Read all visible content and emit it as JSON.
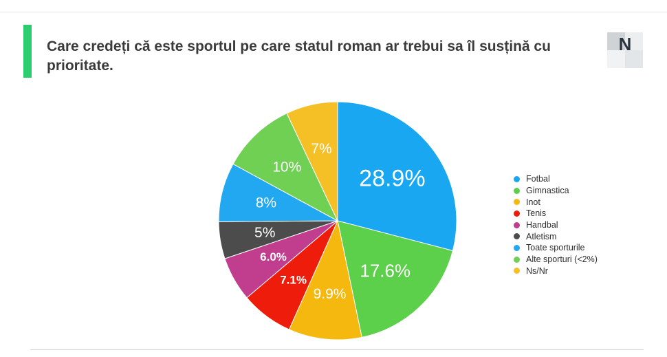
{
  "title": "Care credeți că este sportul pe care statul roman ar trebui sa îl susțină cu prioritate.",
  "accent_color": "#2ecc71",
  "logo": {
    "icon": "n-logo-icon",
    "letter": "N"
  },
  "chart_data": {
    "type": "pie",
    "title": "Care credeți că este sportul pe care statul roman ar trebui sa îl susțină cu prioritate.",
    "legend_position": "right",
    "start_angle_deg": 0,
    "direction": "clockwise",
    "slices": [
      {
        "name": "Fotbal",
        "value": 28.9,
        "label": "28.9%",
        "color": "#1aa7f2"
      },
      {
        "name": "Gimnastica",
        "value": 17.6,
        "label": "17.6%",
        "color": "#5cd04a"
      },
      {
        "name": "Inot",
        "value": 9.9,
        "label": "9.9%",
        "color": "#f5b80f"
      },
      {
        "name": "Tenis",
        "value": 7.1,
        "label": "7.1%",
        "color": "#ee1c0a"
      },
      {
        "name": "Handbal",
        "value": 6.0,
        "label": "6.0%",
        "color": "#c13d8d"
      },
      {
        "name": "Atletism",
        "value": 5,
        "label": "5%",
        "color": "#4c4c4c"
      },
      {
        "name": "Toate sporturile",
        "value": 8,
        "label": "8%",
        "color": "#22a8f0"
      },
      {
        "name": "Alte sporturi (<2%)",
        "value": 10,
        "label": "10%",
        "color": "#70d053"
      },
      {
        "name": "Ns/Nr",
        "value": 7,
        "label": "7%",
        "color": "#f5c026"
      }
    ]
  }
}
